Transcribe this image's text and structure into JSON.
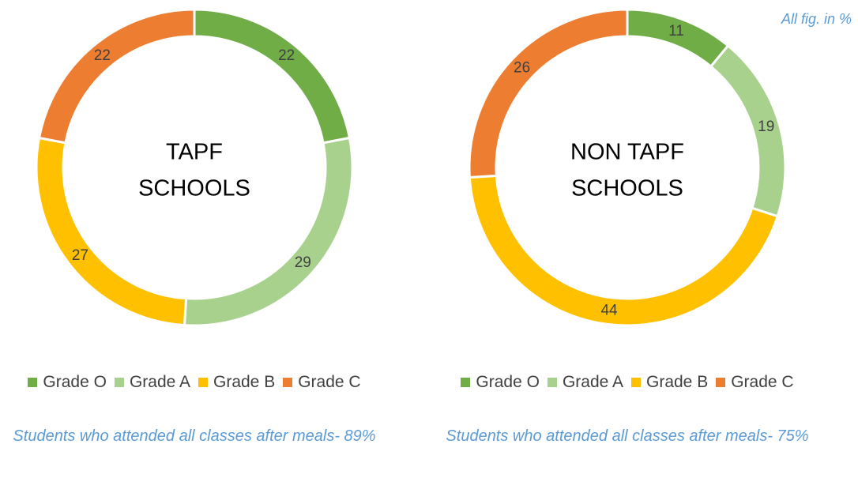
{
  "note": "All fig. in %",
  "chart_data": [
    {
      "type": "donut",
      "center_label": [
        "TAPF",
        "SCHOOLS"
      ],
      "categories": [
        "Grade O",
        "Grade A",
        "Grade B",
        "Grade C"
      ],
      "values": [
        22,
        29,
        27,
        22
      ],
      "colors": [
        "#70ad47",
        "#a9d18e",
        "#ffc000",
        "#ed7d31"
      ],
      "caption": "Students who attended all classes after meals- 89%"
    },
    {
      "type": "donut",
      "center_label": [
        "NON TAPF",
        "SCHOOLS"
      ],
      "categories": [
        "Grade O",
        "Grade A",
        "Grade B",
        "Grade C"
      ],
      "values": [
        11,
        19,
        44,
        26
      ],
      "colors": [
        "#70ad47",
        "#a9d18e",
        "#ffc000",
        "#ed7d31"
      ],
      "caption": "Students who attended all classes after meals- 75%"
    }
  ]
}
